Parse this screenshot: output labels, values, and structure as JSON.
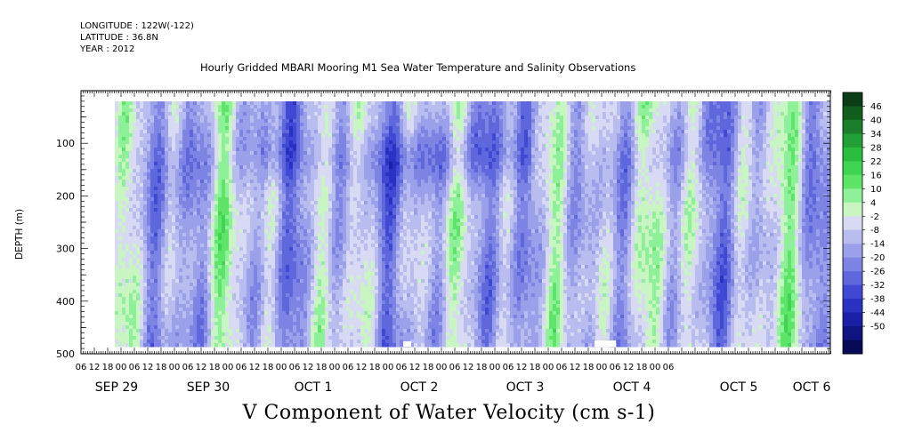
{
  "header": {
    "longitude": "LONGITUDE : 122W(-122)",
    "latitude": "LATITUDE : 36.8N",
    "year": "YEAR : 2012"
  },
  "chart_data": {
    "type": "heatmap",
    "title": "Hourly Gridded MBARI Mooring M1 Sea Water Temperature and Salinity Observations",
    "xlabel": "V Component of Water Velocity (cm s-1)",
    "ylabel": "DEPTH (m)",
    "ylim": [
      500,
      0
    ],
    "y_ticks": [
      100,
      200,
      300,
      400,
      500
    ],
    "x_hour_ticks": [
      "06",
      "12",
      "18",
      "00",
      "06",
      "12",
      "18",
      "00",
      "06",
      "12",
      "18",
      "00",
      "06",
      "12",
      "18",
      "00",
      "06",
      "12",
      "18",
      "00",
      "06",
      "12",
      "18",
      "00",
      "06",
      "12",
      "18",
      "00",
      "06",
      "12",
      "18",
      "00",
      "06",
      "12",
      "18",
      "00",
      "06",
      "12",
      "18",
      "00",
      "06",
      "12",
      "18",
      "00",
      "06"
    ],
    "x_day_labels": [
      "SEP 29",
      "SEP 30",
      "OCT 1",
      "OCT 2",
      "OCT 3",
      "OCT 4",
      "OCT 5",
      "OCT 6"
    ],
    "colorbar": {
      "levels": [
        "46",
        "40",
        "34",
        "28",
        "22",
        "16",
        "10",
        "4",
        "-2",
        "-8",
        "-14",
        "-20",
        "-26",
        "-32",
        "-38",
        "-44",
        "-50"
      ],
      "colors": [
        "#0d3d16",
        "#125e1f",
        "#1a7e2a",
        "#22a035",
        "#2bbd3f",
        "#3fd552",
        "#5fe46a",
        "#8ff09a",
        "#c9f5c2",
        "#d8daf4",
        "#b8bcef",
        "#9ba0ea",
        "#7e84e3",
        "#5f67dc",
        "#4148d4",
        "#2a32c4",
        "#1a20a5",
        "#0f1480",
        "#070a55"
      ]
    }
  }
}
